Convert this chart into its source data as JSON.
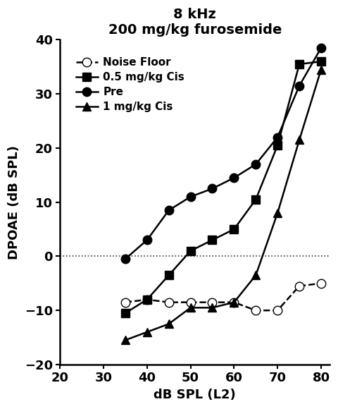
{
  "title_line1": "8 kHz",
  "title_line2": "200 mg/kg furosemide",
  "xlabel": "dB SPL (L2)",
  "ylabel": "DPOAE (dB SPL)",
  "xlim": [
    20,
    82
  ],
  "ylim": [
    -20,
    40
  ],
  "xticks": [
    20,
    30,
    40,
    50,
    60,
    70,
    80
  ],
  "yticks": [
    -20,
    -10,
    0,
    10,
    20,
    30,
    40
  ],
  "series": [
    {
      "label": "Noise Floor",
      "x": [
        35,
        40,
        45,
        50,
        55,
        60,
        65,
        70,
        75,
        80
      ],
      "y": [
        -8.5,
        -8.0,
        -8.5,
        -8.5,
        -8.5,
        -8.5,
        -10.0,
        -10.0,
        -5.5,
        -5.0
      ],
      "color": "#000000",
      "marker": "o",
      "markerfacecolor": "white",
      "markeredgecolor": "#000000",
      "linestyle": "--",
      "linewidth": 1.8,
      "markersize": 9
    },
    {
      "label": "0.5 mg/kg Cis",
      "x": [
        35,
        40,
        45,
        50,
        55,
        60,
        65,
        70,
        75,
        80
      ],
      "y": [
        -10.5,
        -8.0,
        -3.5,
        1.0,
        3.0,
        5.0,
        10.5,
        20.5,
        35.5,
        36.0
      ],
      "color": "#000000",
      "marker": "s",
      "markerfacecolor": "#000000",
      "markeredgecolor": "#000000",
      "linestyle": "-",
      "linewidth": 1.8,
      "markersize": 9
    },
    {
      "label": "Pre",
      "x": [
        35,
        40,
        45,
        50,
        55,
        60,
        65,
        70,
        75,
        80
      ],
      "y": [
        -0.5,
        3.0,
        8.5,
        11.0,
        12.5,
        14.5,
        17.0,
        22.0,
        31.5,
        38.5
      ],
      "color": "#000000",
      "marker": "o",
      "markerfacecolor": "#000000",
      "markeredgecolor": "#000000",
      "linestyle": "-",
      "linewidth": 1.8,
      "markersize": 9
    },
    {
      "label": "1 mg/kg Cis",
      "x": [
        35,
        40,
        45,
        50,
        55,
        60,
        65,
        70,
        75,
        80
      ],
      "y": [
        -15.5,
        -14.0,
        -12.5,
        -9.5,
        -9.5,
        -8.5,
        -3.5,
        8.0,
        21.5,
        34.5
      ],
      "color": "#000000",
      "marker": "^",
      "markerfacecolor": "#000000",
      "markeredgecolor": "#000000",
      "linestyle": "-",
      "linewidth": 1.8,
      "markersize": 9
    }
  ],
  "hline_y": 0,
  "hline_color": "#333333",
  "hline_linestyle": ":",
  "hline_linewidth": 1.2,
  "background_color": "#ffffff",
  "title_fontsize": 14,
  "label_fontsize": 13,
  "tick_fontsize": 13,
  "legend_fontsize": 11,
  "fig_width": 4.8,
  "fig_height": 5.8
}
